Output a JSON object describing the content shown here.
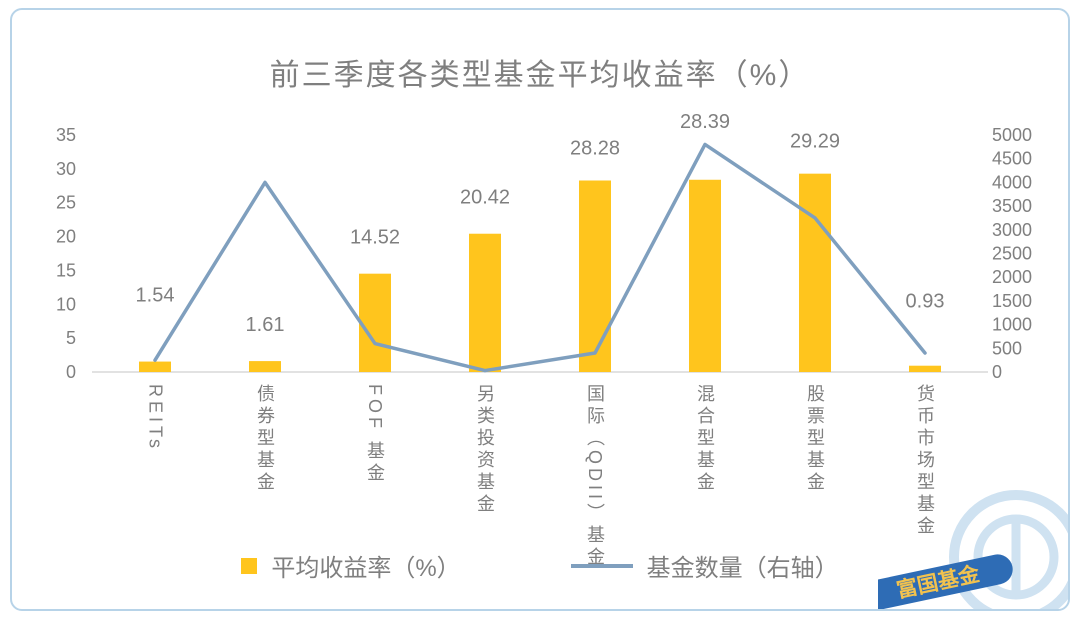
{
  "title": "前三季度各类型基金平均收益率（%）",
  "watermark": "富国基金",
  "colors": {
    "bar": "#FFC51D",
    "line": "#7F9FBE",
    "text": "#7F7F7F",
    "axis": "#D9D9D9",
    "border": "#B7D3E8",
    "logo_blue": "#2E6CB5",
    "logo_light_blue": "#CFE2F1",
    "logo_gold": "#F2C24E"
  },
  "chart_data": {
    "type": "bar",
    "title": "前三季度各类型基金平均收益率（%）",
    "categories": [
      "REITs",
      "债券型基金",
      "FOF 基金",
      "另类投资基金",
      "国际（QDII）基金",
      "混合型基金",
      "股票型基金",
      "货币市场型基金"
    ],
    "series": [
      {
        "name": "平均收益率（%）",
        "type": "bar",
        "axis": "left",
        "values": [
          1.54,
          1.61,
          14.52,
          20.42,
          28.28,
          28.39,
          29.29,
          0.93
        ],
        "labels": [
          "1.54",
          "1.61",
          "14.52",
          "20.42",
          "28.28",
          "28.39",
          "29.29",
          "0.93"
        ]
      },
      {
        "name": "基金数量（右轴）",
        "type": "line",
        "axis": "right",
        "values": [
          250,
          4000,
          600,
          30,
          400,
          4800,
          3250,
          400
        ]
      }
    ],
    "left_axis": {
      "min": 0,
      "max": 35,
      "step": 5,
      "ticks": [
        0,
        5,
        10,
        15,
        20,
        25,
        30,
        35
      ]
    },
    "right_axis": {
      "min": 0,
      "max": 5000,
      "step": 500,
      "ticks": [
        0,
        500,
        1000,
        1500,
        2000,
        2500,
        3000,
        3500,
        4000,
        4500,
        5000
      ]
    },
    "grid": "off",
    "legend_position": "bottom"
  }
}
